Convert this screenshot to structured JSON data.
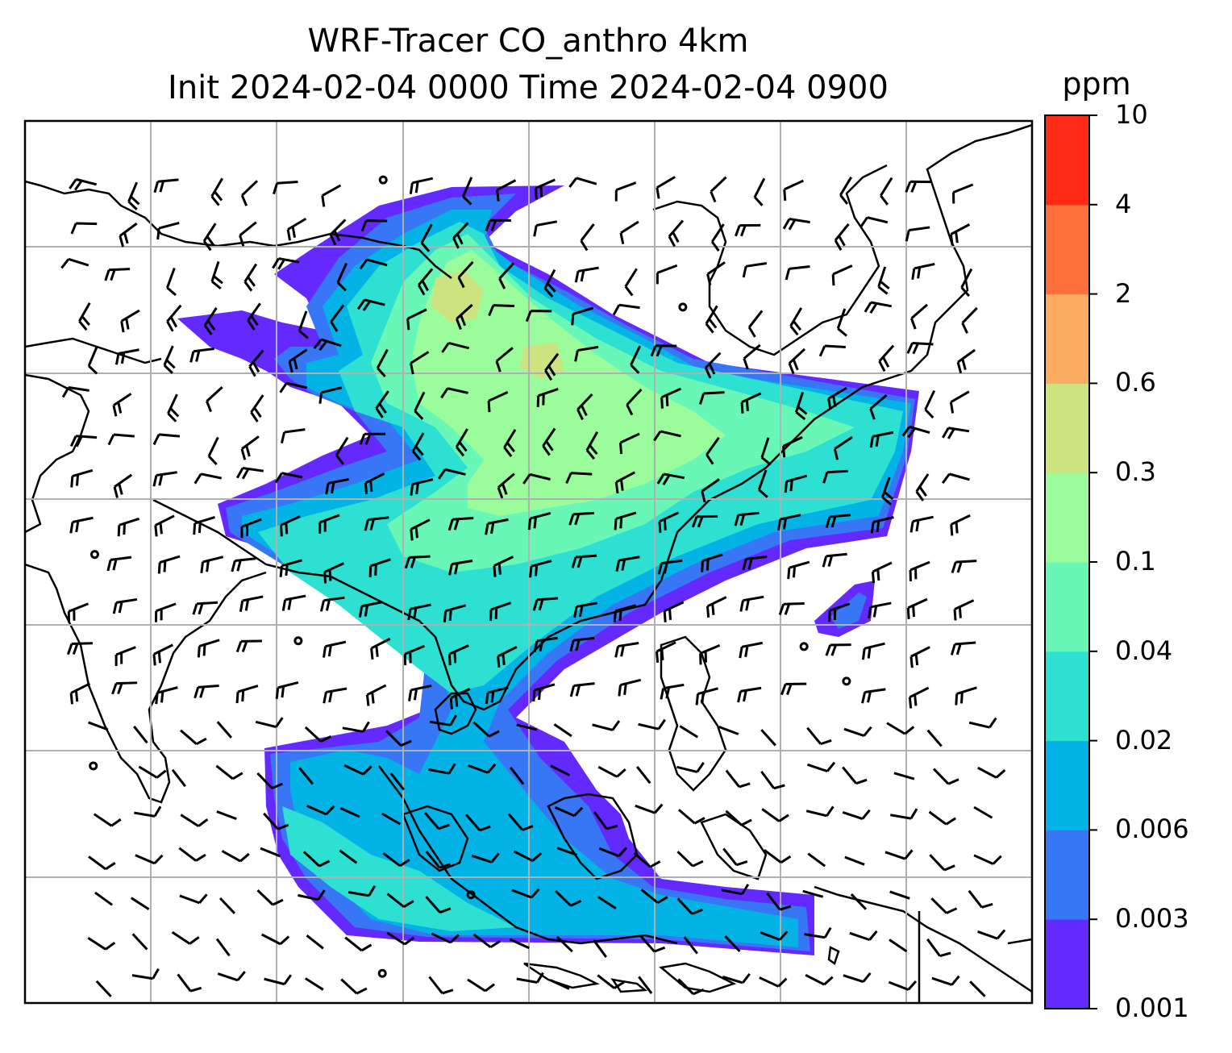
{
  "title": {
    "line1": "WRF-Tracer CO_anthro 4km",
    "line2": "Init 2024-02-04 0000 Time 2024-02-04 0900"
  },
  "colorbar": {
    "unit": "ppm",
    "levels": [
      "0.001",
      "0.003",
      "0.006",
      "0.02",
      "0.04",
      "0.1",
      "0.3",
      "0.6",
      "2",
      "4",
      "10"
    ],
    "colors": [
      "#6429ff",
      "#3776f4",
      "#04b3e6",
      "#2de0d2",
      "#69f7b8",
      "#9bfc9c",
      "#cde37f",
      "#fcab63",
      "#fe6f3c",
      "#ff2a15"
    ]
  },
  "map": {
    "type": "tracer concentration with wind barbs",
    "gridlines": true,
    "coastline_color": "#000000",
    "grid_color": "#b0b0b0"
  }
}
